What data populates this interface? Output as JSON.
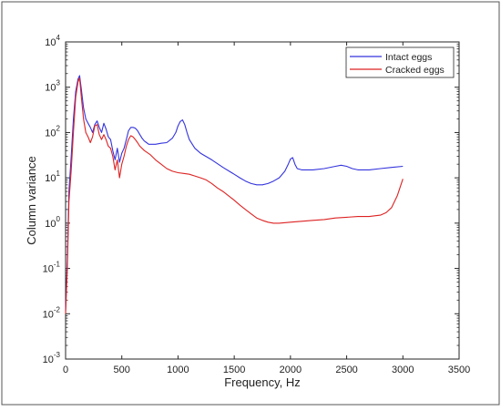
{
  "chart_data": {
    "type": "line",
    "title": "",
    "xlabel": "Frequency, Hz",
    "ylabel": "Column variance",
    "xlim": [
      0,
      3500
    ],
    "ylim": [
      0.001,
      10000
    ],
    "yscale": "log",
    "grid": false,
    "legend_position": "top-right",
    "x_ticks": [
      "0",
      "500",
      "1000",
      "1500",
      "2000",
      "2500",
      "3000",
      "3500"
    ],
    "y_ticks": [
      {
        "base": "10",
        "exp": "-3"
      },
      {
        "base": "10",
        "exp": "-2"
      },
      {
        "base": "10",
        "exp": "-1"
      },
      {
        "base": "10",
        "exp": "0"
      },
      {
        "base": "10",
        "exp": "1"
      },
      {
        "base": "10",
        "exp": "2"
      },
      {
        "base": "10",
        "exp": "3"
      },
      {
        "base": "10",
        "exp": "4"
      }
    ],
    "series": [
      {
        "name": "Intact eggs",
        "color": "#3333dd",
        "points": [
          [
            0,
            0.012
          ],
          [
            15,
            0.15
          ],
          [
            30,
            5
          ],
          [
            50,
            30
          ],
          [
            70,
            200
          ],
          [
            90,
            800
          ],
          [
            110,
            1500
          ],
          [
            125,
            1800
          ],
          [
            140,
            900
          ],
          [
            160,
            350
          ],
          [
            180,
            200
          ],
          [
            200,
            160
          ],
          [
            220,
            130
          ],
          [
            240,
            100
          ],
          [
            260,
            150
          ],
          [
            280,
            180
          ],
          [
            300,
            130
          ],
          [
            320,
            100
          ],
          [
            340,
            160
          ],
          [
            360,
            120
          ],
          [
            380,
            80
          ],
          [
            400,
            70
          ],
          [
            420,
            40
          ],
          [
            440,
            25
          ],
          [
            460,
            45
          ],
          [
            480,
            22
          ],
          [
            500,
            35
          ],
          [
            520,
            45
          ],
          [
            540,
            70
          ],
          [
            560,
            110
          ],
          [
            580,
            130
          ],
          [
            600,
            130
          ],
          [
            620,
            125
          ],
          [
            640,
            110
          ],
          [
            660,
            90
          ],
          [
            680,
            75
          ],
          [
            700,
            65
          ],
          [
            720,
            60
          ],
          [
            740,
            55
          ],
          [
            760,
            55
          ],
          [
            800,
            55
          ],
          [
            850,
            58
          ],
          [
            900,
            60
          ],
          [
            950,
            75
          ],
          [
            980,
            100
          ],
          [
            1000,
            140
          ],
          [
            1020,
            175
          ],
          [
            1040,
            190
          ],
          [
            1060,
            150
          ],
          [
            1080,
            100
          ],
          [
            1100,
            70
          ],
          [
            1150,
            45
          ],
          [
            1200,
            35
          ],
          [
            1300,
            25
          ],
          [
            1400,
            17
          ],
          [
            1500,
            12
          ],
          [
            1550,
            10
          ],
          [
            1600,
            8.5
          ],
          [
            1650,
            7.5
          ],
          [
            1700,
            7
          ],
          [
            1750,
            7
          ],
          [
            1800,
            7.5
          ],
          [
            1850,
            8.5
          ],
          [
            1900,
            10
          ],
          [
            1950,
            14
          ],
          [
            1980,
            20
          ],
          [
            2000,
            26
          ],
          [
            2020,
            28
          ],
          [
            2040,
            20
          ],
          [
            2060,
            16
          ],
          [
            2100,
            15
          ],
          [
            2200,
            15
          ],
          [
            2300,
            16
          ],
          [
            2400,
            18
          ],
          [
            2450,
            19
          ],
          [
            2500,
            18
          ],
          [
            2550,
            16
          ],
          [
            2600,
            15
          ],
          [
            2700,
            15
          ],
          [
            2800,
            16
          ],
          [
            2900,
            17
          ],
          [
            3000,
            18
          ]
        ]
      },
      {
        "name": "Cracked eggs",
        "color": "#dd2222",
        "points": [
          [
            0,
            0.01
          ],
          [
            15,
            0.1
          ],
          [
            30,
            3
          ],
          [
            50,
            15
          ],
          [
            70,
            100
          ],
          [
            90,
            600
          ],
          [
            110,
            1300
          ],
          [
            125,
            1600
          ],
          [
            140,
            600
          ],
          [
            160,
            200
          ],
          [
            180,
            100
          ],
          [
            200,
            80
          ],
          [
            220,
            60
          ],
          [
            240,
            80
          ],
          [
            260,
            140
          ],
          [
            280,
            150
          ],
          [
            300,
            90
          ],
          [
            320,
            70
          ],
          [
            340,
            90
          ],
          [
            360,
            70
          ],
          [
            380,
            50
          ],
          [
            400,
            45
          ],
          [
            420,
            30
          ],
          [
            440,
            15
          ],
          [
            460,
            25
          ],
          [
            480,
            10
          ],
          [
            500,
            20
          ],
          [
            520,
            30
          ],
          [
            540,
            50
          ],
          [
            560,
            70
          ],
          [
            580,
            85
          ],
          [
            600,
            80
          ],
          [
            620,
            70
          ],
          [
            640,
            60
          ],
          [
            660,
            50
          ],
          [
            700,
            40
          ],
          [
            750,
            33
          ],
          [
            800,
            25
          ],
          [
            850,
            20
          ],
          [
            900,
            16
          ],
          [
            950,
            14
          ],
          [
            1000,
            13
          ],
          [
            1050,
            12.5
          ],
          [
            1100,
            12
          ],
          [
            1150,
            11
          ],
          [
            1200,
            10
          ],
          [
            1250,
            9
          ],
          [
            1300,
            7.5
          ],
          [
            1350,
            6
          ],
          [
            1400,
            5
          ],
          [
            1450,
            4
          ],
          [
            1500,
            3.2
          ],
          [
            1550,
            2.5
          ],
          [
            1600,
            2
          ],
          [
            1650,
            1.6
          ],
          [
            1700,
            1.3
          ],
          [
            1750,
            1.15
          ],
          [
            1800,
            1.05
          ],
          [
            1850,
            1.0
          ],
          [
            1900,
            1.0
          ],
          [
            2000,
            1.05
          ],
          [
            2100,
            1.1
          ],
          [
            2200,
            1.15
          ],
          [
            2300,
            1.2
          ],
          [
            2400,
            1.3
          ],
          [
            2500,
            1.35
          ],
          [
            2600,
            1.4
          ],
          [
            2700,
            1.4
          ],
          [
            2750,
            1.45
          ],
          [
            2800,
            1.5
          ],
          [
            2850,
            1.7
          ],
          [
            2900,
            2.2
          ],
          [
            2950,
            4
          ],
          [
            3000,
            9.5
          ]
        ]
      }
    ]
  }
}
